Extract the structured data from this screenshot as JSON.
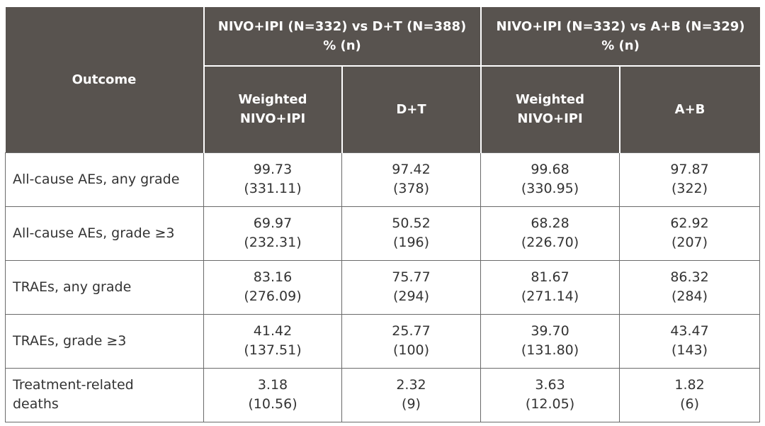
{
  "header": {
    "outcome": "Outcome",
    "groups": [
      {
        "title": "NIVO+IPI (N=332) vs D+T (N=388)",
        "subtitle": "% (n)"
      },
      {
        "title": "NIVO+IPI (N=332) vs A+B (N=329)",
        "subtitle": "% (n)"
      }
    ],
    "columns": [
      [
        "Weighted",
        "NIVO+IPI"
      ],
      [
        "D+T"
      ],
      [
        "Weighted",
        "NIVO+IPI"
      ],
      [
        "A+B"
      ]
    ]
  },
  "rows": [
    {
      "outcome": [
        "All-cause AEs, any grade"
      ],
      "cells": [
        [
          "99.73",
          "(331.11)"
        ],
        [
          "97.42",
          "(378)"
        ],
        [
          "99.68",
          "(330.95)"
        ],
        [
          "97.87",
          "(322)"
        ]
      ]
    },
    {
      "outcome": [
        "All-cause AEs, grade ≥3"
      ],
      "cells": [
        [
          "69.97",
          "(232.31)"
        ],
        [
          "50.52",
          "(196)"
        ],
        [
          "68.28",
          "(226.70)"
        ],
        [
          "62.92",
          "(207)"
        ]
      ]
    },
    {
      "outcome": [
        "TRAEs, any grade"
      ],
      "cells": [
        [
          "83.16",
          "(276.09)"
        ],
        [
          "75.77",
          "(294)"
        ],
        [
          "81.67",
          "(271.14)"
        ],
        [
          "86.32",
          "(284)"
        ]
      ]
    },
    {
      "outcome": [
        "TRAEs, grade ≥3"
      ],
      "cells": [
        [
          "41.42",
          "(137.51)"
        ],
        [
          "25.77",
          "(100)"
        ],
        [
          "39.70",
          "(131.80)"
        ],
        [
          "43.47",
          "(143)"
        ]
      ]
    },
    {
      "outcome": [
        "Treatment-related",
        "deaths"
      ],
      "cells": [
        [
          "3.18",
          "(10.56)"
        ],
        [
          "2.32",
          "(9)"
        ],
        [
          "3.63",
          "(12.05)"
        ],
        [
          "1.82",
          "(6)"
        ]
      ]
    }
  ]
}
